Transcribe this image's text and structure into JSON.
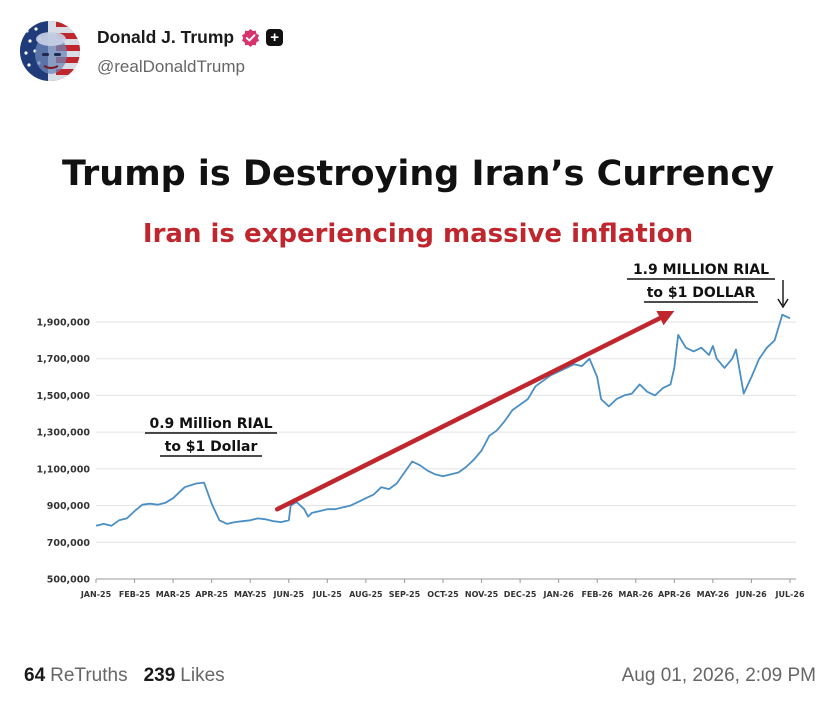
{
  "post": {
    "author": {
      "display_name": "Donald J. Trump",
      "handle": "@realDonaldTrump",
      "avatar_icon": "flag-portrait-avatar",
      "verified_icon": "verified-badge-icon",
      "verified_color": "#d6336c",
      "extra_icon": "plus-square-icon"
    },
    "retruths": {
      "count": "64",
      "label": "ReTruths"
    },
    "likes": {
      "count": "239",
      "label": "Likes"
    },
    "timestamp": "Aug 01, 2026, 2:09 PM"
  },
  "chart_data": {
    "type": "line",
    "title": "Trump is Destroying Iran’s Currency",
    "subtitle": "Iran is experiencing massive inflation",
    "title_color": "#111111",
    "subtitle_color": "#c0262d",
    "line_color": "#4a8fc4",
    "arrow_color": "#c0262d",
    "xlabel": "",
    "ylabel": "",
    "grid": true,
    "ylim": [
      500000,
      1900000
    ],
    "y_ticks": [
      500000,
      700000,
      900000,
      1100000,
      1300000,
      1500000,
      1700000,
      1900000
    ],
    "y_tick_labels": [
      "500,000",
      "700,000",
      "900,000",
      "1,100,000",
      "1,300,000",
      "1,500,000",
      "1,700,000",
      "1,900,000"
    ],
    "x_tick_labels": [
      "JAN-25",
      "FEB-25",
      "MAR-25",
      "APR-25",
      "MAY-25",
      "JUN-25",
      "JUL-25",
      "AUG-25",
      "SEP-25",
      "OCT-25",
      "NOV-25",
      "DEC-25",
      "JAN-26",
      "FEB-26",
      "MAR-26",
      "APR-26",
      "MAY-26",
      "JUN-26",
      "JUL-26"
    ],
    "series": [
      {
        "x": [
          0,
          0.2,
          0.4,
          0.6,
          0.8,
          1.0,
          1.2,
          1.4,
          1.6,
          1.8,
          2.0,
          2.3,
          2.6,
          2.8,
          3.0,
          3.2,
          3.4,
          3.6,
          3.8,
          4.0,
          4.2,
          4.4,
          4.6,
          4.8,
          5.0,
          5.05,
          5.2,
          5.4,
          5.5,
          5.6,
          5.8,
          6.0,
          6.2,
          6.4,
          6.6,
          6.8,
          7.0,
          7.2,
          7.4,
          7.6,
          7.8,
          8.0,
          8.2,
          8.4,
          8.6,
          8.8,
          9.0,
          9.2,
          9.4,
          9.6,
          9.8,
          10.0,
          10.2,
          10.4,
          10.6,
          10.8,
          11.0,
          11.2,
          11.4,
          11.6,
          11.8,
          12.0,
          12.2,
          12.4,
          12.6,
          12.8,
          13.0,
          13.1,
          13.3,
          13.5,
          13.7,
          13.9,
          14.1,
          14.3,
          14.5,
          14.7,
          14.9,
          15.0,
          15.1,
          15.3,
          15.5,
          15.7,
          15.9,
          16.0,
          16.1,
          16.3,
          16.5,
          16.6,
          16.8,
          17.0,
          17.2,
          17.4,
          17.6,
          17.8,
          18.0
        ],
        "y": [
          790000,
          800000,
          790000,
          820000,
          830000,
          870000,
          905000,
          910000,
          905000,
          915000,
          940000,
          1000000,
          1020000,
          1025000,
          910000,
          820000,
          800000,
          810000,
          815000,
          820000,
          830000,
          825000,
          815000,
          810000,
          820000,
          900000,
          920000,
          880000,
          840000,
          860000,
          870000,
          880000,
          880000,
          890000,
          900000,
          920000,
          940000,
          960000,
          1000000,
          990000,
          1020000,
          1080000,
          1140000,
          1120000,
          1090000,
          1070000,
          1060000,
          1070000,
          1080000,
          1110000,
          1150000,
          1200000,
          1280000,
          1310000,
          1360000,
          1420000,
          1450000,
          1480000,
          1550000,
          1580000,
          1610000,
          1630000,
          1650000,
          1670000,
          1660000,
          1700000,
          1600000,
          1480000,
          1440000,
          1480000,
          1500000,
          1510000,
          1560000,
          1520000,
          1500000,
          1540000,
          1560000,
          1650000,
          1830000,
          1760000,
          1740000,
          1760000,
          1720000,
          1770000,
          1700000,
          1650000,
          1700000,
          1750000,
          1510000,
          1600000,
          1700000,
          1760000,
          1800000,
          1940000,
          1920000
        ]
      }
    ],
    "annotations": [
      {
        "text_lines": [
          "0.9 Million RIAL",
          "to $1 Dollar"
        ]
      },
      {
        "text_lines": [
          "1.9 MILLION RIAL",
          "to $1 DOLLAR"
        ]
      }
    ],
    "trend_arrow": {
      "from": [
        4.7,
        880000
      ],
      "to": [
        15.0,
        1960000
      ]
    }
  }
}
